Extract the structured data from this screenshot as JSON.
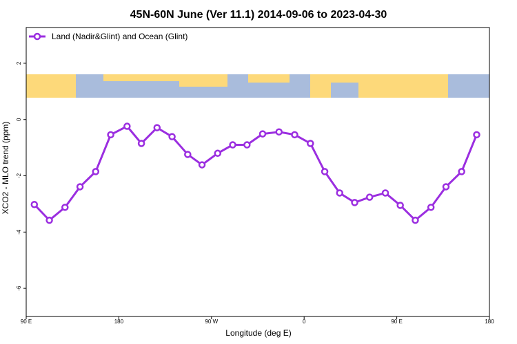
{
  "chart_data": {
    "type": "line",
    "title": "45N-60N June (Ver 11.1)   2014-09-06 to 2023-04-30",
    "xlabel": "Longitude (deg E)",
    "ylabel": "XCO2 - MLO trend (ppm)",
    "x": [
      97.9,
      112.5,
      127.7,
      142.3,
      157.5,
      172.1,
      188.0,
      201.9,
      217.1,
      231.7,
      246.9,
      260.8,
      276.0,
      290.6,
      304.5,
      319.7,
      335.6,
      350.8,
      366.1,
      380.0,
      394.5,
      409.1,
      423.6,
      438.9,
      453.4,
      468.0,
      483.2,
      497.8,
      513.0,
      527.6
    ],
    "series": [
      {
        "name": "Land (Nadir&Glint) and Ocean (Glint)",
        "color": "#9b2ee0",
        "values": [
          -3.02,
          -3.58,
          -3.12,
          -2.39,
          -1.85,
          -0.54,
          -0.24,
          -0.85,
          -0.29,
          -0.61,
          -1.24,
          -1.61,
          -1.2,
          -0.9,
          -0.9,
          -0.51,
          -0.44,
          -0.54,
          -0.85,
          -1.85,
          -2.61,
          -2.95,
          -2.76,
          -2.61,
          -3.05,
          -3.58,
          -3.12,
          -2.39,
          -1.85,
          -0.54
        ]
      }
    ],
    "xlim": [
      90,
      540
    ],
    "xticks": [
      {
        "value": 90,
        "label": "90 E"
      },
      180,
      {
        "value": 270,
        "label": "90 W"
      },
      {
        "value": 360,
        "label": "0"
      },
      {
        "value": 450,
        "label": "90 E"
      },
      {
        "value": 540,
        "label": "180"
      }
    ],
    "ylim": [
      -7,
      3.27
    ],
    "yticks": [
      2,
      0,
      -2,
      -4,
      -6
    ],
    "legend": "top-left"
  }
}
